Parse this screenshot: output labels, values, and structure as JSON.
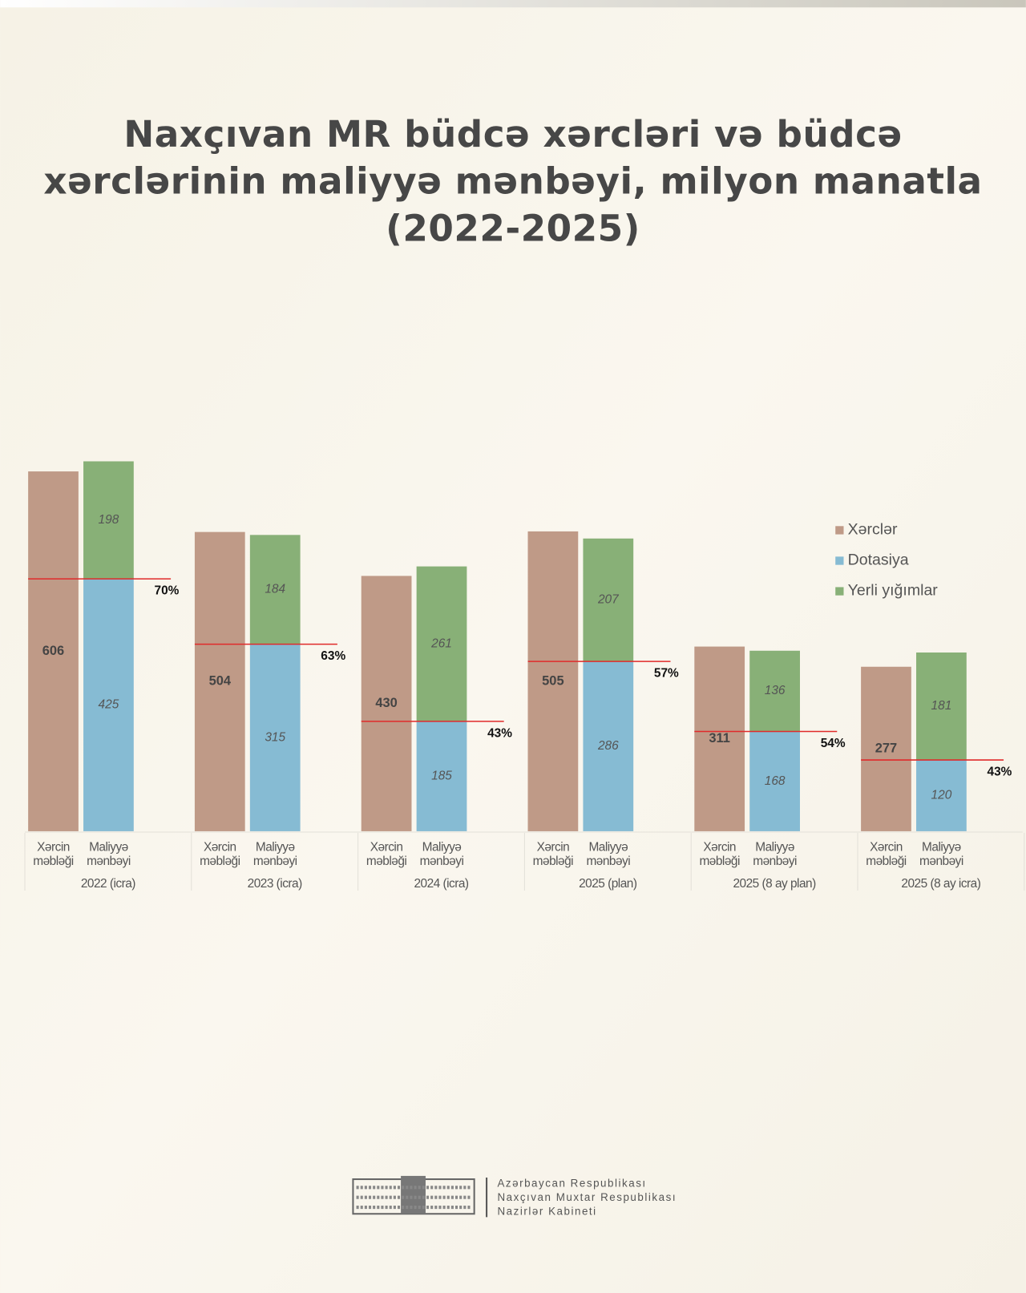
{
  "chart_data": {
    "type": "grouped-stacked-bar",
    "title": "Naxçıvan MR büdcə xərcləri və büdcə xərclərinin maliyyə mənbəyi, milyon manatla (2022-2025)",
    "categories": [
      "2022 (icra)",
      "2023 (icra)",
      "2024 (icra)",
      "2025 (plan)",
      "2025 (8 ay plan)",
      "2025 (8 ay icra)"
    ],
    "bar_labels": [
      [
        "Xərcin",
        "məbləği"
      ],
      [
        "Maliyyə",
        "mənbəyi"
      ]
    ],
    "series": [
      {
        "name": "Xərclər",
        "color": "#bf9a87",
        "values": [
          606,
          504,
          430,
          505,
          311,
          277
        ]
      },
      {
        "name": "Dotasiya",
        "color": "#86bbd3",
        "values": [
          425,
          315,
          185,
          286,
          168,
          120
        ]
      },
      {
        "name": "Yerli yığımlar",
        "color": "#88b077",
        "values": [
          198,
          184,
          261,
          207,
          136,
          181
        ]
      }
    ],
    "shares": {
      "color": "#e02a2a",
      "values": [
        70,
        63,
        43,
        57,
        54,
        43
      ],
      "value_labels": [
        "70%",
        "63%",
        "43%",
        "57%",
        "54%",
        "43%"
      ]
    },
    "legend": "right"
  },
  "footer": {
    "lines": [
      "Azərbaycan Respublikası",
      "Naxçıvan Muxtar Respublikası",
      "Nazirlər Kabineti"
    ]
  }
}
